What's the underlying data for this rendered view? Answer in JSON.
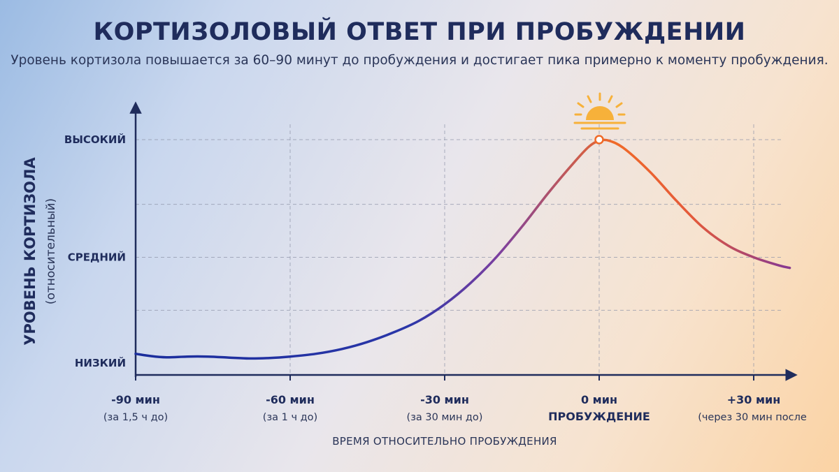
{
  "header": {
    "title": "КОРТИЗОЛОВЫЙ ОТВЕТ ПРИ ПРОБУЖДЕНИИ",
    "subtitle": "Уровень кортизола повышается за 60–90 минут до пробуждения и достигает пика примерно к моменту пробуждения."
  },
  "icons": {
    "peak_marker": "sun-icon"
  },
  "colors": {
    "curve_start": "#1a2d9c",
    "curve_mid": "#7b3fa0",
    "curve_peak": "#f06a28",
    "sun": "#f7b13a",
    "axis": "#1f2c5c"
  },
  "chart_data": {
    "type": "line",
    "ylabel": "УРОВЕНЬ КОРТИЗОЛА",
    "ylabel_sub": "(относительный)",
    "xlabel": "ВРЕМЯ ОТНОСИТЕЛЬНО ПРОБУЖДЕНИЯ",
    "xlim": [
      -90,
      40
    ],
    "ylim": [
      0,
      1.05
    ],
    "grid": true,
    "y_ticks": [
      {
        "value": 0.05,
        "label": "НИЗКИЙ"
      },
      {
        "value": 0.5,
        "label": "СРЕДНИЙ"
      },
      {
        "value": 1.0,
        "label": "ВЫСОКИЙ"
      }
    ],
    "y_gridlines": [
      0.275,
      0.5,
      0.725,
      1.0
    ],
    "x_ticks": [
      {
        "value": -90,
        "label": "-90 мин",
        "sub": "(за 1,5 ч до)",
        "emphasis": false
      },
      {
        "value": -60,
        "label": "-60 мин",
        "sub": "(за 1 ч до)",
        "emphasis": false
      },
      {
        "value": -30,
        "label": "-30 мин",
        "sub": "(за 30 мин до)",
        "emphasis": false
      },
      {
        "value": 0,
        "label": "0 мин",
        "sub": "ПРОБУЖДЕНИЕ",
        "emphasis": true
      },
      {
        "value": 30,
        "label": "+30 мин",
        "sub": "(через 30 мин после",
        "emphasis": false
      }
    ],
    "series": [
      {
        "x": [
          -90,
          -87,
          -84,
          -80,
          -76,
          -72,
          -68,
          -64,
          -60,
          -55,
          -50,
          -45,
          -40,
          -35,
          -30,
          -25,
          -20,
          -15,
          -10,
          -5,
          -2,
          0,
          2,
          5,
          10,
          15,
          20,
          25,
          30,
          35,
          37
        ],
        "y": [
          0.09,
          0.08,
          0.075,
          0.078,
          0.078,
          0.074,
          0.07,
          0.072,
          0.078,
          0.09,
          0.11,
          0.14,
          0.18,
          0.23,
          0.3,
          0.39,
          0.5,
          0.63,
          0.77,
          0.9,
          0.97,
          0.995,
          0.995,
          0.96,
          0.86,
          0.74,
          0.63,
          0.55,
          0.5,
          0.465,
          0.455
        ]
      }
    ],
    "peak": {
      "x": 0,
      "y": 1.0
    }
  }
}
